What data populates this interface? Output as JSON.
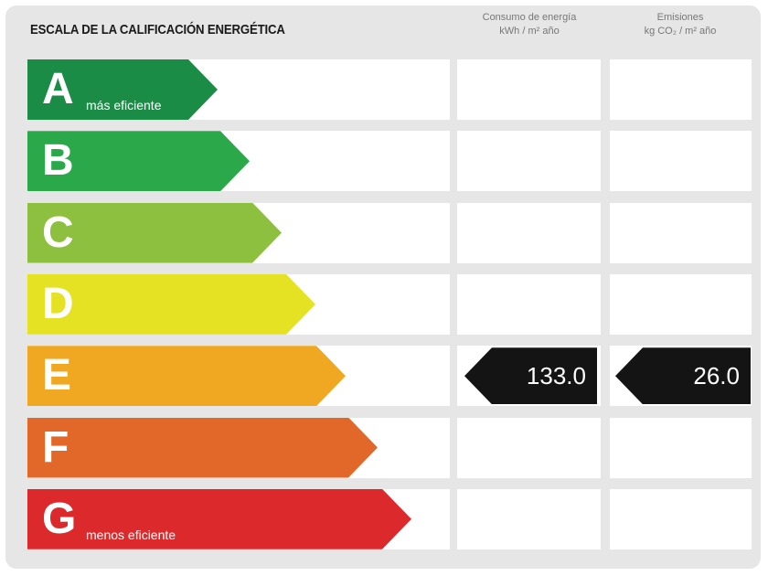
{
  "title": "ESCALA DE LA CALIFICACIÓN ENERGÉTICA",
  "columns": {
    "consumption": {
      "line1": "Consumo de energía",
      "line2": "kWh / m² año"
    },
    "emissions": {
      "line1": "Emisiones",
      "line2": "kg CO₂ / m² año"
    }
  },
  "ratings": [
    {
      "letter": "A",
      "sub": "más eficiente",
      "color": "#1b8c46"
    },
    {
      "letter": "B",
      "sub": "",
      "color": "#2ba84a"
    },
    {
      "letter": "C",
      "sub": "",
      "color": "#8dc03f"
    },
    {
      "letter": "D",
      "sub": "",
      "color": "#e5e224"
    },
    {
      "letter": "E",
      "sub": "",
      "color": "#f0a823"
    },
    {
      "letter": "F",
      "sub": "",
      "color": "#e2682a"
    },
    {
      "letter": "G",
      "sub": "menos eficiente",
      "color": "#dc2a2c"
    }
  ],
  "current_rating": "E",
  "consumption_value": "133.0",
  "emissions_value": "26.0"
}
